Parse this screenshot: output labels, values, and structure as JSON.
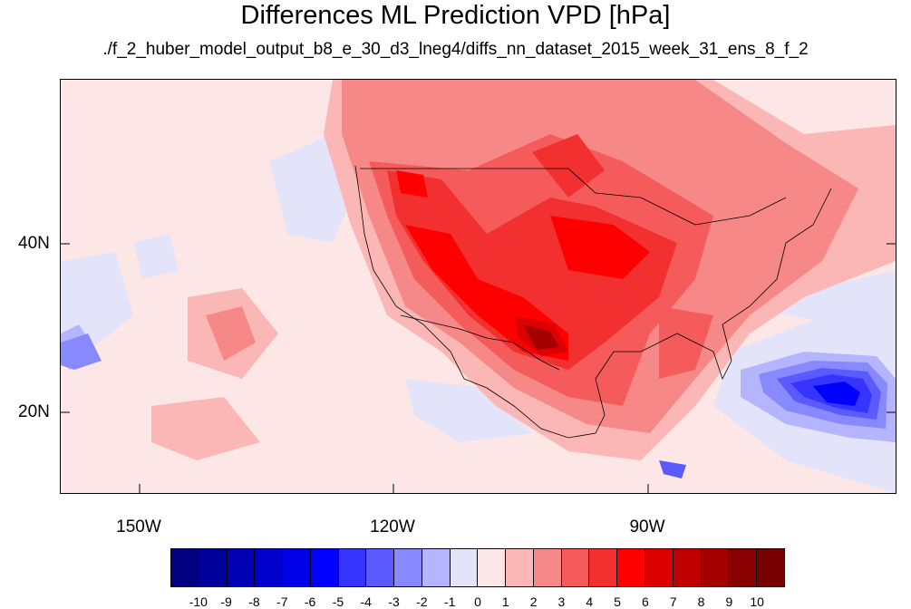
{
  "title": "Differences ML Prediction VPD [hPa]",
  "subtitle": "./f_2_huber_model_output_b8_e_30_d3_lneg4/diffs_nn_dataset_2015_week_31_ens_8_f_2",
  "map": {
    "lon_range": [
      -160,
      -62
    ],
    "lat_range": [
      10,
      59
    ],
    "lon_ticks": [
      "150W",
      "120W",
      "90W"
    ],
    "lat_ticks": [
      "40N",
      "20N"
    ]
  },
  "colorbar": {
    "labels": [
      "-10",
      "-9",
      "-8",
      "-7",
      "-6",
      "-5",
      "-4",
      "-3",
      "-2",
      "-1",
      "0",
      "1",
      "2",
      "3",
      "4",
      "5",
      "6",
      "7",
      "8",
      "9",
      "10"
    ],
    "colors": [
      "#000080",
      "#00009c",
      "#0000b4",
      "#0000cc",
      "#0000e6",
      "#0000ff",
      "#3535ff",
      "#5a5aff",
      "#8888ff",
      "#b4b4ff",
      "#e3e3fa",
      "#fde6e6",
      "#fbb6b6",
      "#f78888",
      "#f55b5b",
      "#f23030",
      "#ff0000",
      "#dc0000",
      "#c00000",
      "#a40000",
      "#880000",
      "#780000"
    ]
  }
}
